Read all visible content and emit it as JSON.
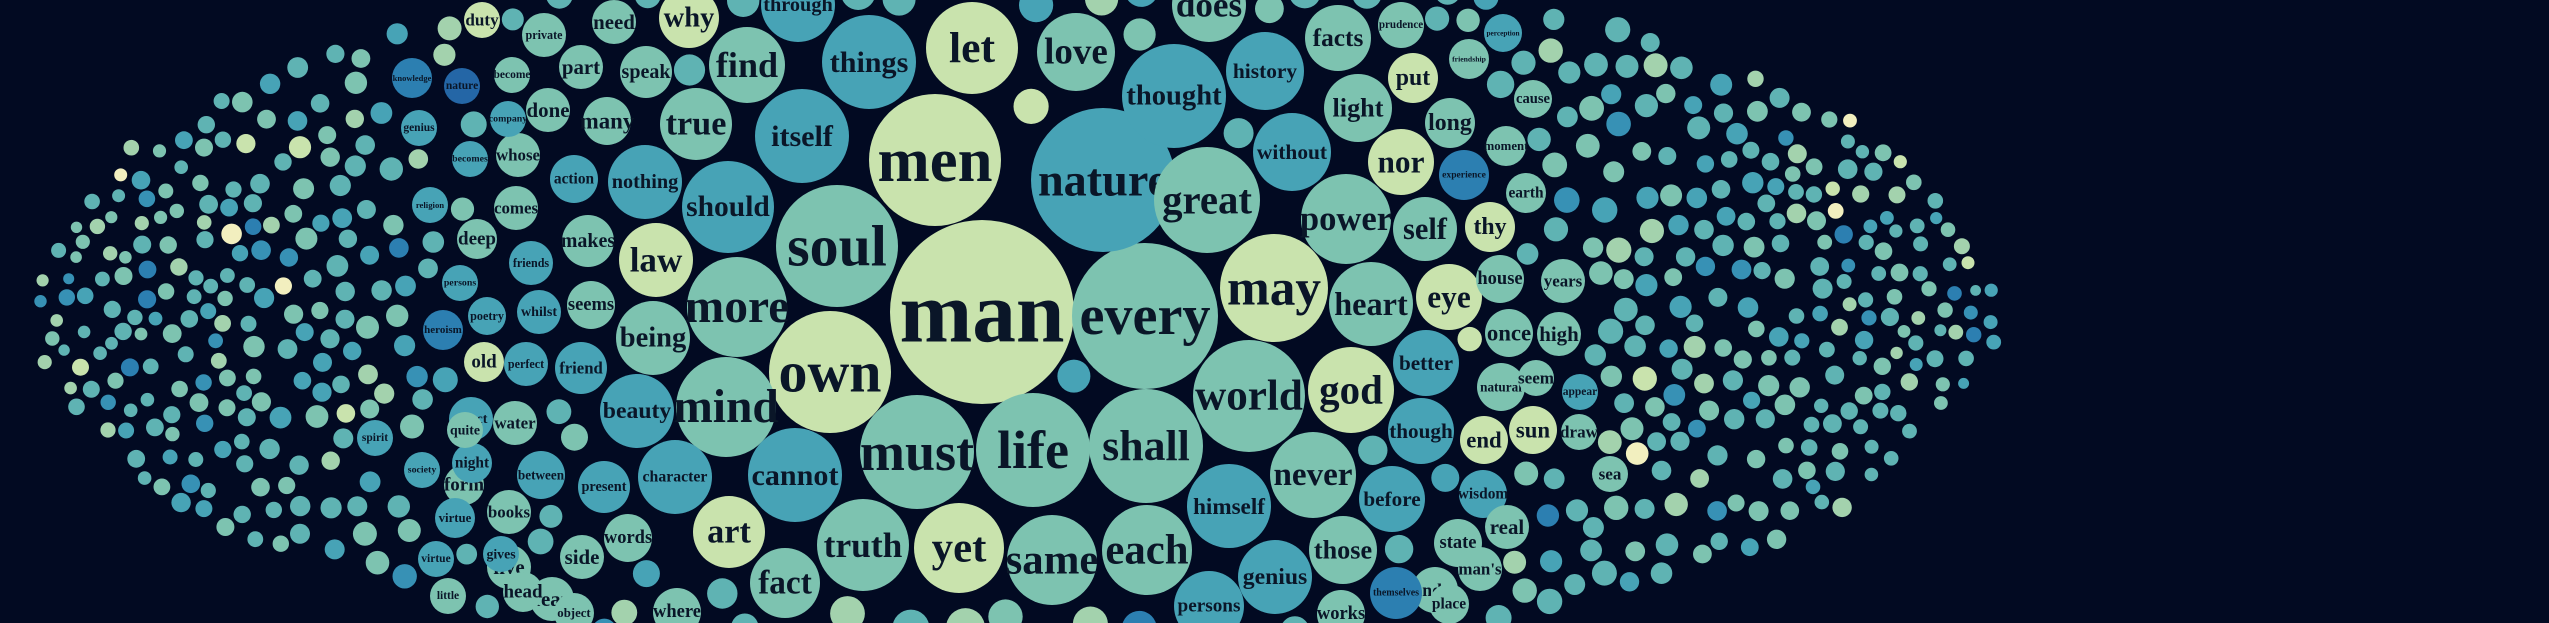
{
  "palette": [
    "#f2efbf",
    "#c9e3ad",
    "#a3d2ad",
    "#7dc3b0",
    "#5fb3b3",
    "#47a3b6",
    "#3791b5",
    "#2c7fb1",
    "#2466a6",
    "#1e4f96"
  ],
  "words": [
    {
      "text": "man",
      "color": "#c9e3ad"
    },
    {
      "text": "every",
      "color": "#7dc3b0"
    },
    {
      "text": "nature",
      "color": "#47a3b6"
    },
    {
      "text": "men",
      "color": "#c9e3ad"
    },
    {
      "text": "soul",
      "color": "#7dc3b0"
    },
    {
      "text": "own",
      "color": "#c9e3ad"
    },
    {
      "text": "love",
      "color": "#7dc3b0"
    },
    {
      "text": "great",
      "color": "#7dc3b0"
    },
    {
      "text": "may",
      "color": "#c9e3ad"
    },
    {
      "text": "world",
      "color": "#7dc3b0"
    },
    {
      "text": "life",
      "color": "#7dc3b0"
    },
    {
      "text": "shall",
      "color": "#7dc3b0"
    },
    {
      "text": "must",
      "color": "#7dc3b0"
    },
    {
      "text": "thought",
      "color": "#47a3b6"
    },
    {
      "text": "let",
      "color": "#c9e3ad"
    },
    {
      "text": "things",
      "color": "#47a3b6"
    },
    {
      "text": "itself",
      "color": "#47a3b6"
    },
    {
      "text": "more",
      "color": "#7dc3b0"
    },
    {
      "text": "mind",
      "color": "#7dc3b0"
    },
    {
      "text": "should",
      "color": "#47a3b6"
    },
    {
      "text": "cannot",
      "color": "#47a3b6"
    },
    {
      "text": "truth",
      "color": "#7dc3b0"
    },
    {
      "text": "yet",
      "color": "#c9e3ad"
    },
    {
      "text": "same",
      "color": "#7dc3b0"
    },
    {
      "text": "each",
      "color": "#7dc3b0"
    },
    {
      "text": "god",
      "color": "#c9e3ad"
    },
    {
      "text": "heart",
      "color": "#7dc3b0"
    },
    {
      "text": "power",
      "color": "#7dc3b0"
    },
    {
      "text": "history",
      "color": "#47a3b6"
    },
    {
      "text": "without",
      "color": "#47a3b6"
    },
    {
      "text": "never",
      "color": "#7dc3b0"
    },
    {
      "text": "himself",
      "color": "#47a3b6"
    },
    {
      "text": "does",
      "color": "#7dc3b0"
    },
    {
      "text": "through",
      "color": "#47a3b6"
    },
    {
      "text": "find",
      "color": "#7dc3b0"
    },
    {
      "text": "true",
      "color": "#7dc3b0"
    },
    {
      "text": "nothing",
      "color": "#47a3b6"
    },
    {
      "text": "law",
      "color": "#c9e3ad"
    },
    {
      "text": "being",
      "color": "#7dc3b0"
    },
    {
      "text": "beauty",
      "color": "#47a3b6"
    },
    {
      "text": "character",
      "color": "#47a3b6"
    },
    {
      "text": "art",
      "color": "#c9e3ad"
    },
    {
      "text": "fact",
      "color": "#7dc3b0"
    },
    {
      "text": "genius",
      "color": "#47a3b6"
    },
    {
      "text": "persons",
      "color": "#47a3b6"
    },
    {
      "text": "those",
      "color": "#7dc3b0"
    },
    {
      "text": "before",
      "color": "#47a3b6"
    },
    {
      "text": "though",
      "color": "#47a3b6"
    },
    {
      "text": "better",
      "color": "#47a3b6"
    },
    {
      "text": "eye",
      "color": "#c9e3ad"
    },
    {
      "text": "self",
      "color": "#7dc3b0"
    },
    {
      "text": "nor",
      "color": "#c9e3ad"
    },
    {
      "text": "light",
      "color": "#7dc3b0"
    },
    {
      "text": "facts",
      "color": "#7dc3b0"
    },
    {
      "text": "put",
      "color": "#c9e3ad"
    },
    {
      "text": "long",
      "color": "#7dc3b0"
    },
    {
      "text": "experience",
      "color": "#2c7fb1"
    },
    {
      "text": "thy",
      "color": "#c9e3ad"
    },
    {
      "text": "house",
      "color": "#7dc3b0"
    },
    {
      "text": "once",
      "color": "#7dc3b0"
    },
    {
      "text": "natural",
      "color": "#7dc3b0"
    },
    {
      "text": "end",
      "color": "#c9e3ad"
    },
    {
      "text": "sun",
      "color": "#c9e3ad"
    },
    {
      "text": "wisdom",
      "color": "#47a3b6"
    },
    {
      "text": "state",
      "color": "#7dc3b0"
    },
    {
      "text": "under",
      "color": "#7dc3b0"
    },
    {
      "text": "man's",
      "color": "#7dc3b0"
    },
    {
      "text": "place",
      "color": "#7dc3b0"
    },
    {
      "text": "themselves",
      "color": "#2c7fb1"
    },
    {
      "text": "works",
      "color": "#7dc3b0"
    },
    {
      "text": "real",
      "color": "#7dc3b0"
    },
    {
      "text": "high",
      "color": "#7dc3b0"
    },
    {
      "text": "years",
      "color": "#7dc3b0"
    },
    {
      "text": "moment",
      "color": "#7dc3b0"
    },
    {
      "text": "earth",
      "color": "#7dc3b0"
    },
    {
      "text": "friendship",
      "color": "#7dc3b0"
    },
    {
      "text": "prudence",
      "color": "#7dc3b0"
    },
    {
      "text": "perception",
      "color": "#47a3b6"
    },
    {
      "text": "cause",
      "color": "#7dc3b0"
    },
    {
      "text": "seem",
      "color": "#7dc3b0"
    },
    {
      "text": "appear",
      "color": "#47a3b6"
    },
    {
      "text": "draw",
      "color": "#7dc3b0"
    },
    {
      "text": "sea",
      "color": "#7dc3b0"
    },
    {
      "text": "why",
      "color": "#c9e3ad"
    },
    {
      "text": "need",
      "color": "#7dc3b0"
    },
    {
      "text": "private",
      "color": "#7dc3b0"
    },
    {
      "text": "part",
      "color": "#7dc3b0"
    },
    {
      "text": "speak",
      "color": "#7dc3b0"
    },
    {
      "text": "done",
      "color": "#7dc3b0"
    },
    {
      "text": "many",
      "color": "#7dc3b0"
    },
    {
      "text": "whose",
      "color": "#7dc3b0"
    },
    {
      "text": "action",
      "color": "#47a3b6"
    },
    {
      "text": "comes",
      "color": "#7dc3b0"
    },
    {
      "text": "makes",
      "color": "#7dc3b0"
    },
    {
      "text": "friends",
      "color": "#47a3b6"
    },
    {
      "text": "seems",
      "color": "#7dc3b0"
    },
    {
      "text": "whilst",
      "color": "#47a3b6"
    },
    {
      "text": "friend",
      "color": "#47a3b6"
    },
    {
      "text": "perfect",
      "color": "#47a3b6"
    },
    {
      "text": "poetry",
      "color": "#47a3b6"
    },
    {
      "text": "old",
      "color": "#c9e3ad"
    },
    {
      "text": "deep",
      "color": "#7dc3b0"
    },
    {
      "text": "effect",
      "color": "#47a3b6"
    },
    {
      "text": "water",
      "color": "#7dc3b0"
    },
    {
      "text": "between",
      "color": "#47a3b6"
    },
    {
      "text": "present",
      "color": "#47a3b6"
    },
    {
      "text": "form",
      "color": "#7dc3b0"
    },
    {
      "text": "books",
      "color": "#7dc3b0"
    },
    {
      "text": "words",
      "color": "#7dc3b0"
    },
    {
      "text": "side",
      "color": "#7dc3b0"
    },
    {
      "text": "live",
      "color": "#7dc3b0"
    },
    {
      "text": "fear",
      "color": "#7dc3b0"
    },
    {
      "text": "where",
      "color": "#7dc3b0"
    },
    {
      "text": "night",
      "color": "#47a3b6"
    },
    {
      "text": "gives",
      "color": "#47a3b6"
    },
    {
      "text": "head",
      "color": "#7dc3b0"
    },
    {
      "text": "object",
      "color": "#7dc3b0"
    },
    {
      "text": "quite",
      "color": "#7dc3b0"
    },
    {
      "text": "become",
      "color": "#7dc3b0"
    },
    {
      "text": "nature",
      "color": "#2466a6"
    },
    {
      "text": "company",
      "color": "#47a3b6"
    },
    {
      "text": "becomes",
      "color": "#47a3b6"
    },
    {
      "text": "religion",
      "color": "#47a3b6"
    },
    {
      "text": "persons",
      "color": "#47a3b6"
    },
    {
      "text": "knowledge",
      "color": "#2c7fb1"
    },
    {
      "text": "genius",
      "color": "#47a3b6"
    },
    {
      "text": "heroism",
      "color": "#2c7fb1"
    },
    {
      "text": "society",
      "color": "#47a3b6"
    },
    {
      "text": "virtue",
      "color": "#47a3b6"
    },
    {
      "text": "little",
      "color": "#7dc3b0"
    },
    {
      "text": "spirit",
      "color": "#47a3b6"
    },
    {
      "text": "virtue",
      "color": "#47a3b6"
    },
    {
      "text": "duty",
      "color": "#c9e3ad"
    }
  ]
}
